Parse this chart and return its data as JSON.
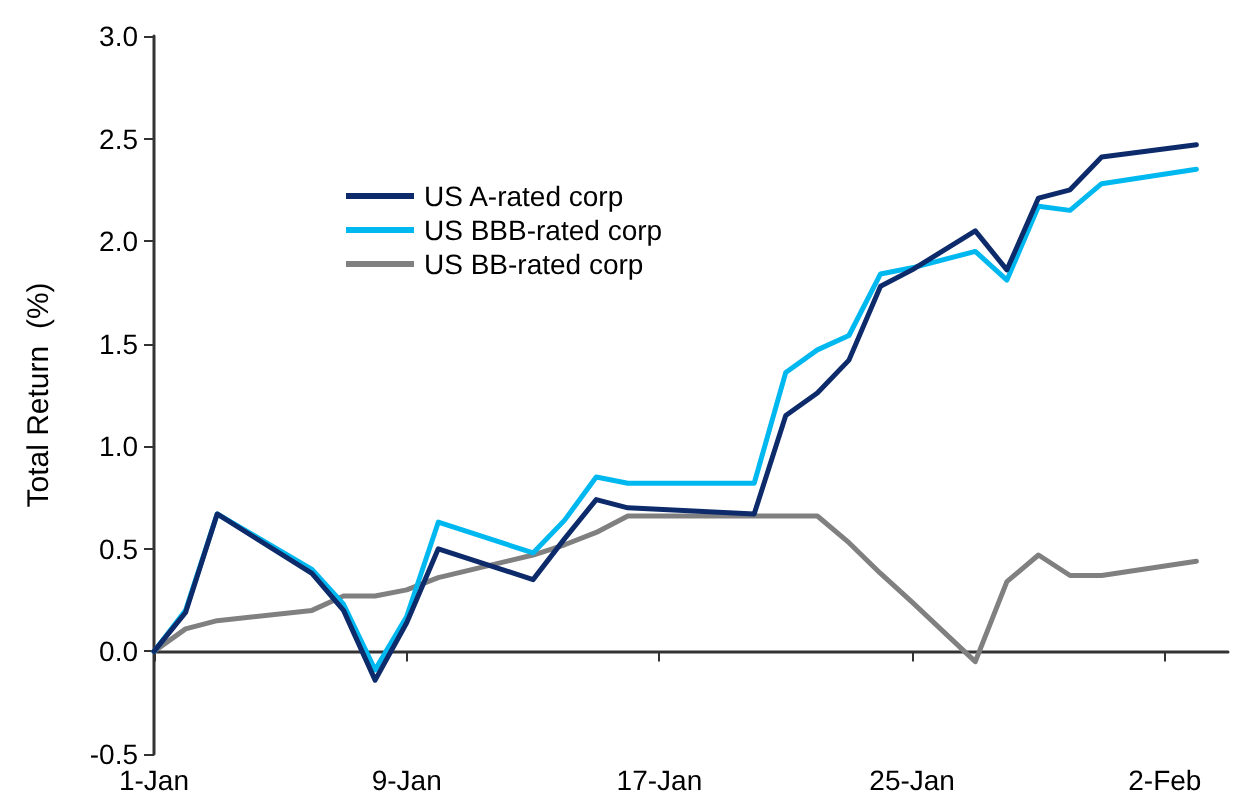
{
  "chart_data": {
    "type": "line",
    "ylabel": "Total Return  (%)",
    "x": [
      "--01-01",
      "--01-02",
      "--01-03",
      "--01-06",
      "--01-07",
      "--01-08",
      "--01-09",
      "--01-10",
      "--01-13",
      "--01-14",
      "--01-15",
      "--01-16",
      "--01-20",
      "--01-21",
      "--01-22",
      "--01-23",
      "--01-24",
      "--01-25",
      "--01-27",
      "--01-28",
      "--01-29",
      "--01-30",
      "--01-31",
      "--02-03"
    ],
    "series": [
      {
        "name": "US A-rated corp",
        "color": "#0d2b6b",
        "values": [
          0,
          0.19,
          0.67,
          0.38,
          0.2,
          -0.14,
          0.14,
          0.5,
          0.35,
          0.55,
          0.74,
          0.7,
          0.67,
          1.15,
          1.26,
          1.42,
          1.78,
          1.86,
          2.05,
          1.86,
          2.21,
          2.25,
          2.41,
          2.47
        ]
      },
      {
        "name": "US BBB-rated corp",
        "color": "#00b8f0",
        "values": [
          0,
          0.2,
          0.67,
          0.4,
          0.23,
          -0.09,
          0.17,
          0.63,
          0.48,
          0.64,
          0.85,
          0.82,
          0.82,
          1.36,
          1.47,
          1.54,
          1.84,
          1.87,
          1.95,
          1.81,
          2.17,
          2.15,
          2.28,
          2.35
        ]
      },
      {
        "name": "US BB-rated corp",
        "color": "#808080",
        "values": [
          0,
          0.11,
          0.15,
          0.2,
          0.27,
          0.27,
          0.3,
          0.36,
          0.47,
          0.52,
          0.58,
          0.66,
          0.66,
          0.66,
          0.66,
          0.53,
          0.38,
          0.24,
          -0.05,
          0.34,
          0.47,
          0.37,
          0.37,
          0.44
        ]
      }
    ],
    "xlim": [
      "--01-01",
      "--02-04"
    ],
    "xticks": [
      {
        "value": "--01-01",
        "label": "1-Jan"
      },
      {
        "value": "--01-09",
        "label": "9-Jan"
      },
      {
        "value": "--01-17",
        "label": "17-Jan"
      },
      {
        "value": "--01-25",
        "label": "25-Jan"
      },
      {
        "value": "--02-02",
        "label": "2-Feb"
      }
    ],
    "ylim": [
      -0.5,
      3.0
    ],
    "yticks": [
      {
        "value": -0.5,
        "label": "-0.5"
      },
      {
        "value": 0,
        "label": "0.0"
      },
      {
        "value": 0.5,
        "label": "0.5"
      },
      {
        "value": 1,
        "label": "1.0"
      },
      {
        "value": 1.5,
        "label": "1.5"
      },
      {
        "value": 2,
        "label": "2.0"
      },
      {
        "value": 2.5,
        "label": "2.5"
      },
      {
        "value": 3,
        "label": "3.0"
      }
    ],
    "legend": "top left",
    "marker": "none",
    "line_style": "solid"
  }
}
